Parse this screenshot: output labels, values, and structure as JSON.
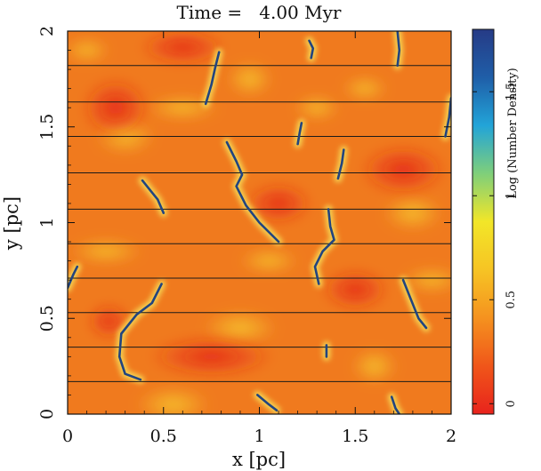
{
  "chart_data": {
    "type": "heatmap",
    "title": "Time =   4.00 Myr",
    "xlabel": "x [pc]",
    "ylabel": "y [pc]",
    "xlim": [
      0,
      2
    ],
    "ylim": [
      0,
      2
    ],
    "x_ticks": [
      {
        "value": 0,
        "label": "0"
      },
      {
        "value": 0.5,
        "label": "0.5"
      },
      {
        "value": 1,
        "label": "1"
      },
      {
        "value": 1.5,
        "label": "1.5"
      },
      {
        "value": 2,
        "label": "2"
      }
    ],
    "y_ticks": [
      {
        "value": 0,
        "label": "0"
      },
      {
        "value": 0.5,
        "label": "0.5"
      },
      {
        "value": 1,
        "label": "1"
      },
      {
        "value": 1.5,
        "label": "1.5"
      },
      {
        "value": 2,
        "label": "2"
      }
    ],
    "colorbar": {
      "label": "Log (Number Density)",
      "range": [
        -0.05,
        1.8
      ],
      "ticks": [
        {
          "value": 0,
          "label": "0"
        },
        {
          "value": 0.5,
          "label": "0.5"
        },
        {
          "value": 1,
          "label": "1"
        },
        {
          "value": 1.5,
          "label": "1.5"
        }
      ],
      "colormap": [
        "#e8231c",
        "#f0561a",
        "#f5921f",
        "#f6c424",
        "#f2e628",
        "#7fcf7a",
        "#22a4d8",
        "#1f5ea8",
        "#263b86"
      ]
    },
    "field_lines_y": [
      0.17,
      0.35,
      0.53,
      0.71,
      0.89,
      1.07,
      1.26,
      1.45,
      1.63,
      1.82
    ],
    "dense_regions": [
      {
        "x": [
          0.18,
          0.25
        ],
        "y": [
          0.45,
          0.52
        ]
      },
      {
        "x": [
          0.5,
          1.0
        ],
        "y": [
          0.25,
          0.35
        ]
      },
      {
        "x": [
          0.45,
          0.75
        ],
        "y": [
          1.88,
          1.95
        ]
      },
      {
        "x": [
          1.0,
          1.2
        ],
        "y": [
          1.05,
          1.15
        ]
      },
      {
        "x": [
          1.6,
          1.9
        ],
        "y": [
          1.2,
          1.35
        ]
      },
      {
        "x": [
          1.4,
          1.6
        ],
        "y": [
          0.6,
          0.7
        ]
      },
      {
        "x": [
          0.15,
          0.35
        ],
        "y": [
          1.5,
          1.7
        ]
      }
    ],
    "filaments": [
      {
        "points": [
          [
            0.38,
            0.18
          ],
          [
            0.3,
            0.21
          ],
          [
            0.27,
            0.3
          ],
          [
            0.28,
            0.42
          ],
          [
            0.36,
            0.52
          ],
          [
            0.44,
            0.58
          ],
          [
            0.49,
            0.68
          ]
        ]
      },
      {
        "points": [
          [
            0.39,
            1.22
          ],
          [
            0.43,
            1.17
          ],
          [
            0.47,
            1.12
          ],
          [
            0.5,
            1.05
          ]
        ]
      },
      {
        "points": [
          [
            0.72,
            1.62
          ],
          [
            0.75,
            1.72
          ],
          [
            0.77,
            1.81
          ],
          [
            0.79,
            1.89
          ]
        ]
      },
      {
        "points": [
          [
            0.83,
            1.42
          ],
          [
            0.88,
            1.32
          ],
          [
            0.91,
            1.25
          ],
          [
            0.88,
            1.19
          ],
          [
            0.93,
            1.09
          ],
          [
            1.0,
            1.0
          ],
          [
            1.1,
            0.9
          ]
        ]
      },
      {
        "points": [
          [
            1.36,
            1.07
          ],
          [
            1.37,
            0.98
          ],
          [
            1.39,
            0.91
          ],
          [
            1.33,
            0.85
          ],
          [
            1.29,
            0.77
          ],
          [
            1.31,
            0.68
          ]
        ]
      },
      {
        "points": [
          [
            1.41,
            1.23
          ],
          [
            1.43,
            1.31
          ],
          [
            1.44,
            1.38
          ]
        ]
      },
      {
        "points": [
          [
            1.2,
            1.41
          ],
          [
            1.21,
            1.47
          ],
          [
            1.22,
            1.52
          ]
        ]
      },
      {
        "points": [
          [
            1.27,
            1.86
          ],
          [
            1.28,
            1.91
          ],
          [
            1.26,
            1.95
          ]
        ]
      },
      {
        "points": [
          [
            1.72,
            1.82
          ],
          [
            1.73,
            1.9
          ],
          [
            1.72,
            2.0
          ]
        ]
      },
      {
        "points": [
          [
            1.97,
            1.45
          ],
          [
            1.99,
            1.55
          ],
          [
            2.0,
            1.65
          ]
        ]
      },
      {
        "points": [
          [
            1.75,
            0.7
          ],
          [
            1.79,
            0.6
          ],
          [
            1.83,
            0.5
          ],
          [
            1.87,
            0.45
          ]
        ]
      },
      {
        "points": [
          [
            1.35,
            0.3
          ],
          [
            1.35,
            0.36
          ]
        ]
      },
      {
        "points": [
          [
            0.99,
            0.1
          ],
          [
            1.05,
            0.05
          ],
          [
            1.09,
            0.02
          ]
        ]
      },
      {
        "points": [
          [
            1.69,
            0.09
          ],
          [
            1.71,
            0.03
          ],
          [
            1.73,
            0.0
          ]
        ]
      },
      {
        "points": [
          [
            0.0,
            0.66
          ],
          [
            0.03,
            0.73
          ],
          [
            0.05,
            0.77
          ]
        ]
      }
    ]
  }
}
